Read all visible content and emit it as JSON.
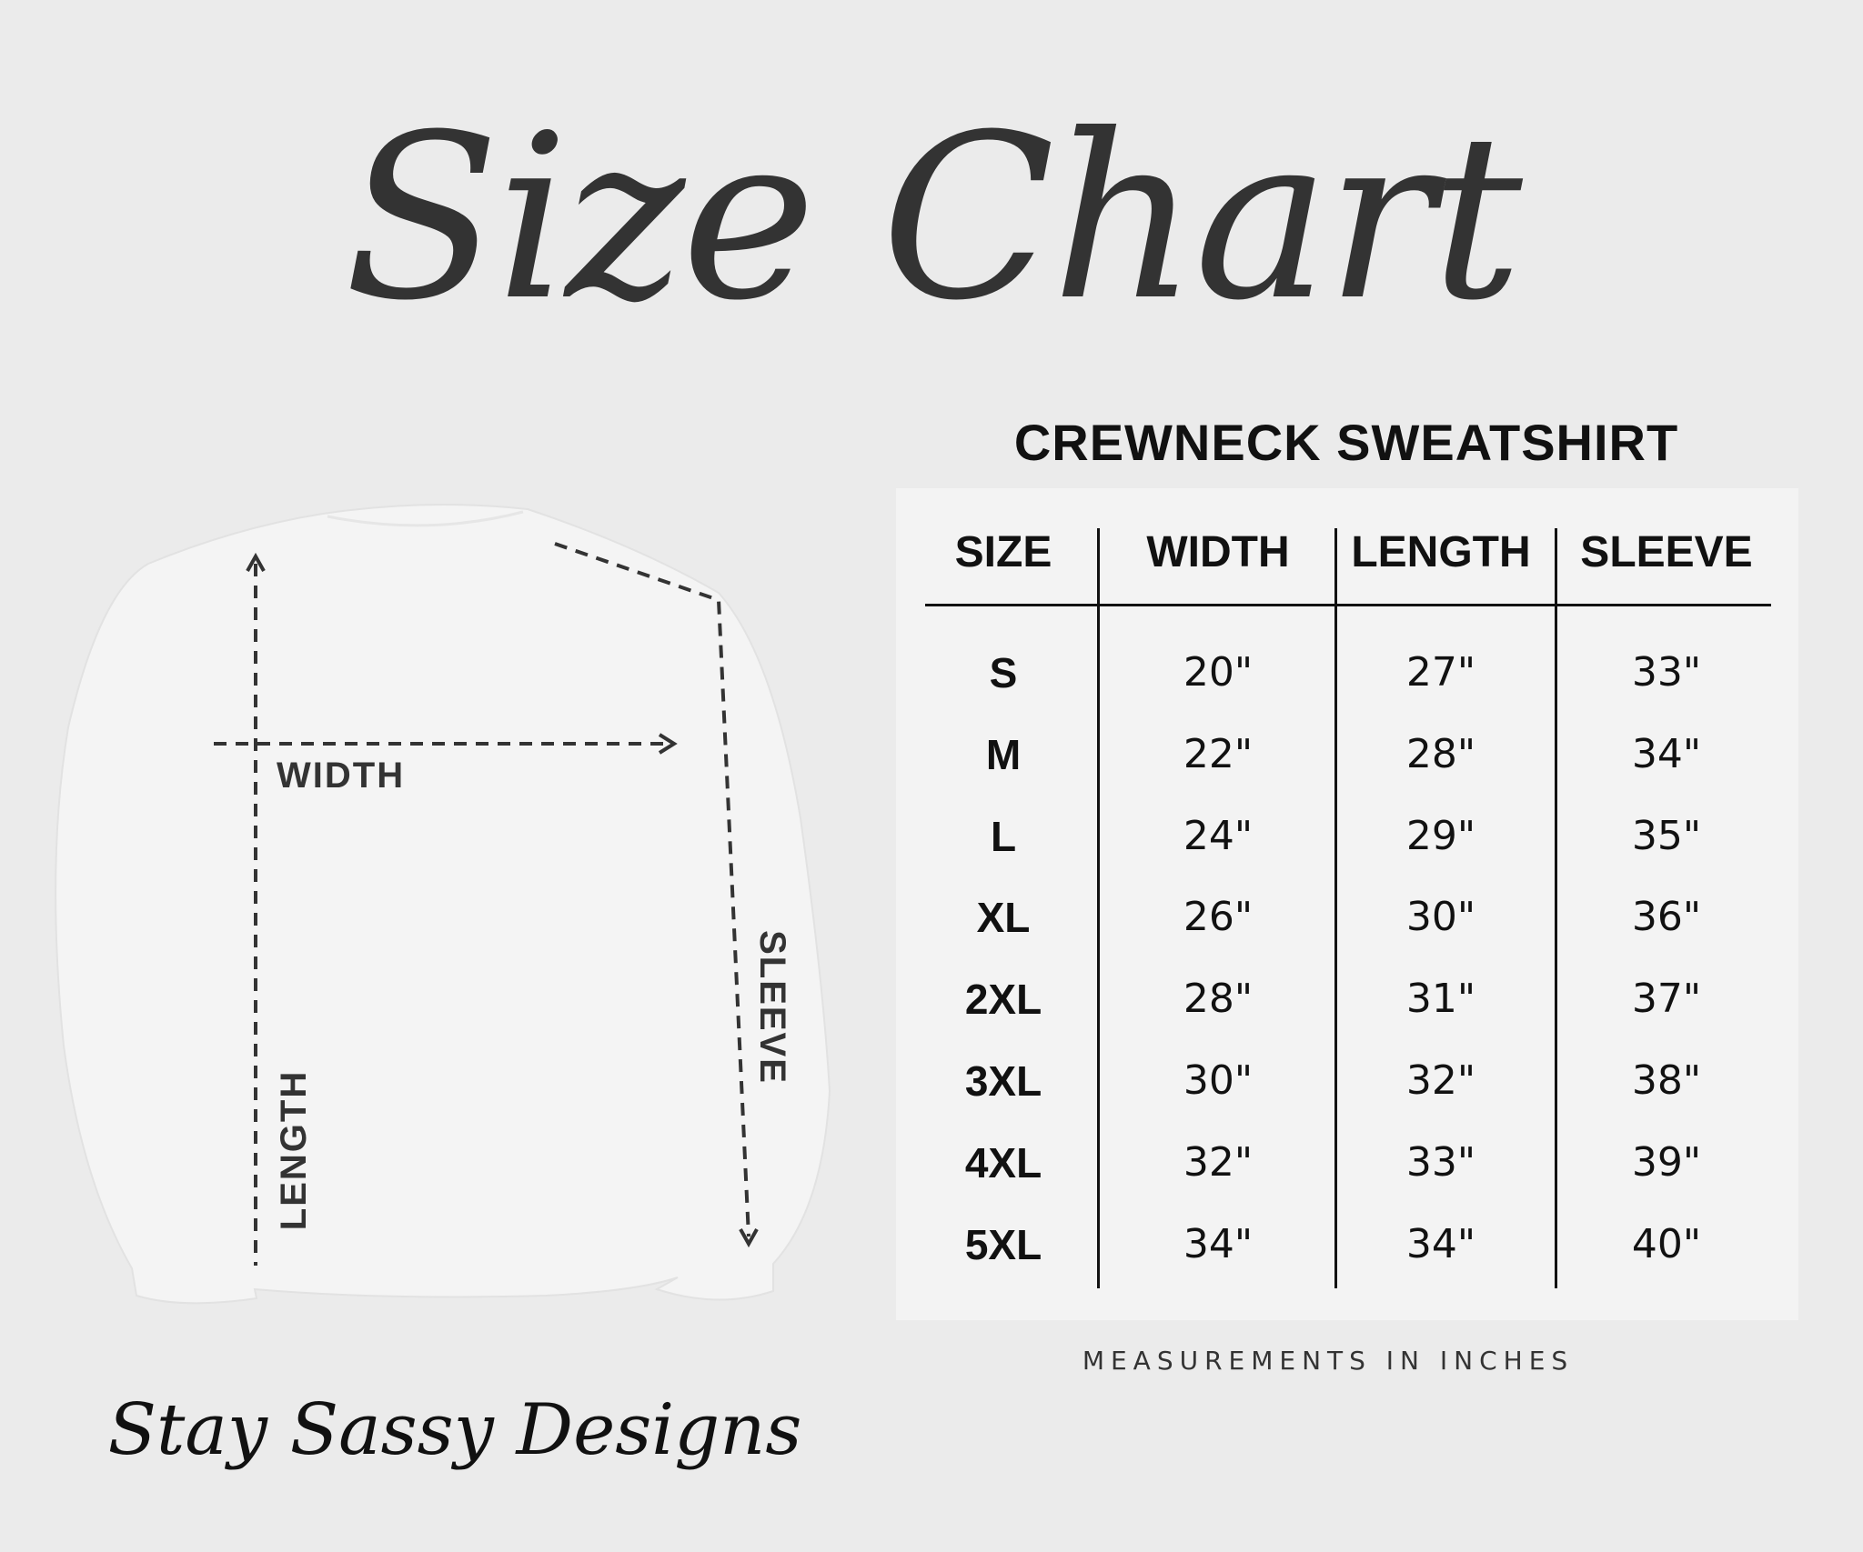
{
  "title": "Size Chart",
  "subtitle": "CREWNECK SWEATSHIRT",
  "table": {
    "headers": [
      "SIZE",
      "WIDTH",
      "LENGTH",
      "SLEEVE"
    ],
    "rows": [
      [
        "S",
        "20\"",
        "27\"",
        "33\""
      ],
      [
        "M",
        "22\"",
        "28\"",
        "34\""
      ],
      [
        "L",
        "24\"",
        "29\"",
        "35\""
      ],
      [
        "XL",
        "26\"",
        "30\"",
        "36\""
      ],
      [
        "2XL",
        "28\"",
        "31\"",
        "37\""
      ],
      [
        "3XL",
        "30\"",
        "32\"",
        "38\""
      ],
      [
        "4XL",
        "32\"",
        "33\"",
        "39\""
      ],
      [
        "5XL",
        "34\"",
        "34\"",
        "40\""
      ]
    ]
  },
  "footer": "MEASUREMENTS IN INCHES",
  "diagram": {
    "width_label": "WIDTH",
    "length_label": "LENGTH",
    "sleeve_label": "SLEEVE"
  },
  "brand": "Stay Sassy Designs",
  "colors": {
    "background": "#ebebeb",
    "panel": "#f3f3f3",
    "text": "#111111",
    "sweatshirt": "#f2f2f2"
  }
}
